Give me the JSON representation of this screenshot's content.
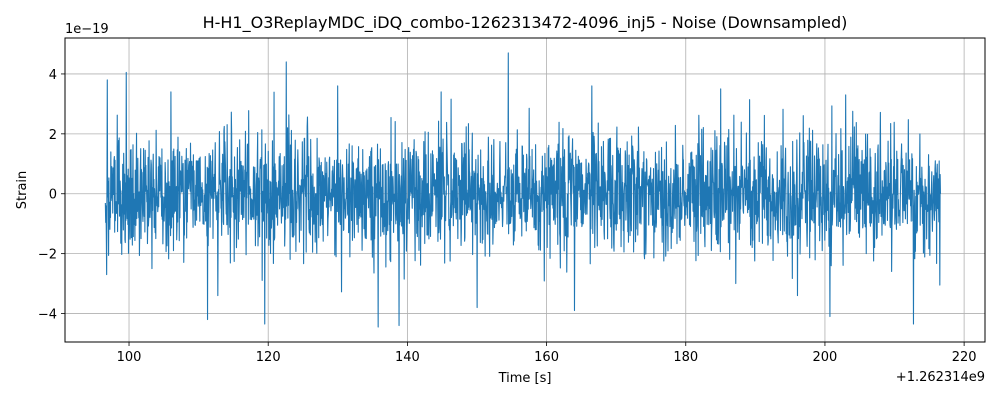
{
  "chart_data": {
    "type": "line",
    "title": "H-H1_O3ReplayMDC_iDQ_combo-1262313472-4096_inj5 - Noise (Downsampled)",
    "xlabel": "Time [s]",
    "ylabel": "Strain",
    "x_offset_text": "+1.262314e9",
    "y_scale_text": "1e−19",
    "x_ticks": [
      {
        "value": 100,
        "label": "100"
      },
      {
        "value": 120,
        "label": "120"
      },
      {
        "value": 140,
        "label": "140"
      },
      {
        "value": 160,
        "label": "160"
      },
      {
        "value": 180,
        "label": "180"
      },
      {
        "value": 200,
        "label": "200"
      },
      {
        "value": 220,
        "label": "220"
      }
    ],
    "y_ticks": [
      {
        "value": -4,
        "label": "−4"
      },
      {
        "value": -2,
        "label": "−2"
      },
      {
        "value": 0,
        "label": "0"
      },
      {
        "value": 2,
        "label": "2"
      },
      {
        "value": 4,
        "label": "4"
      }
    ],
    "xlim": [
      90.8,
      223.0
    ],
    "ylim": [
      -4.95,
      5.2
    ],
    "grid": true,
    "series": [
      {
        "color": "#1f77b4",
        "x_range": [
          96.6,
          216.6
        ],
        "envelope_typical": 2.6,
        "peaks": [
          {
            "x": 96.9,
            "y": 3.8
          },
          {
            "x": 99.6,
            "y": 4.05
          },
          {
            "x": 106.0,
            "y": 3.4
          },
          {
            "x": 122.6,
            "y": 4.4
          },
          {
            "x": 154.5,
            "y": 4.7
          },
          {
            "x": 130.0,
            "y": 3.6
          },
          {
            "x": 166.5,
            "y": 3.6
          },
          {
            "x": 185.0,
            "y": 3.5
          },
          {
            "x": 203.0,
            "y": 3.3
          },
          {
            "x": 216.5,
            "y": 1.95
          }
        ],
        "troughs": [
          {
            "x": 96.8,
            "y": -2.7
          },
          {
            "x": 111.3,
            "y": -4.2
          },
          {
            "x": 119.5,
            "y": -4.35
          },
          {
            "x": 135.8,
            "y": -4.45
          },
          {
            "x": 138.8,
            "y": -4.4
          },
          {
            "x": 150.0,
            "y": -3.8
          },
          {
            "x": 164.0,
            "y": -3.9
          },
          {
            "x": 200.7,
            "y": -4.1
          },
          {
            "x": 212.7,
            "y": -4.35
          },
          {
            "x": 216.5,
            "y": -3.05
          }
        ]
      }
    ]
  }
}
